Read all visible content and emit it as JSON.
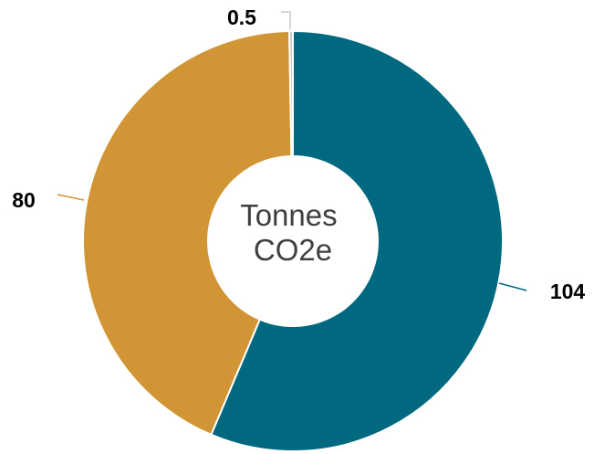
{
  "chart_data": {
    "type": "pie",
    "donut": true,
    "center_label": [
      "Tonnes",
      "CO2e"
    ],
    "slices": [
      {
        "value": 104,
        "label": "104",
        "color": "#00687F"
      },
      {
        "value": 80,
        "label": "80",
        "color": "#D19535"
      },
      {
        "value": 0.5,
        "label": "0.5",
        "color": "#C9C9C9"
      }
    ],
    "legend": "none"
  }
}
